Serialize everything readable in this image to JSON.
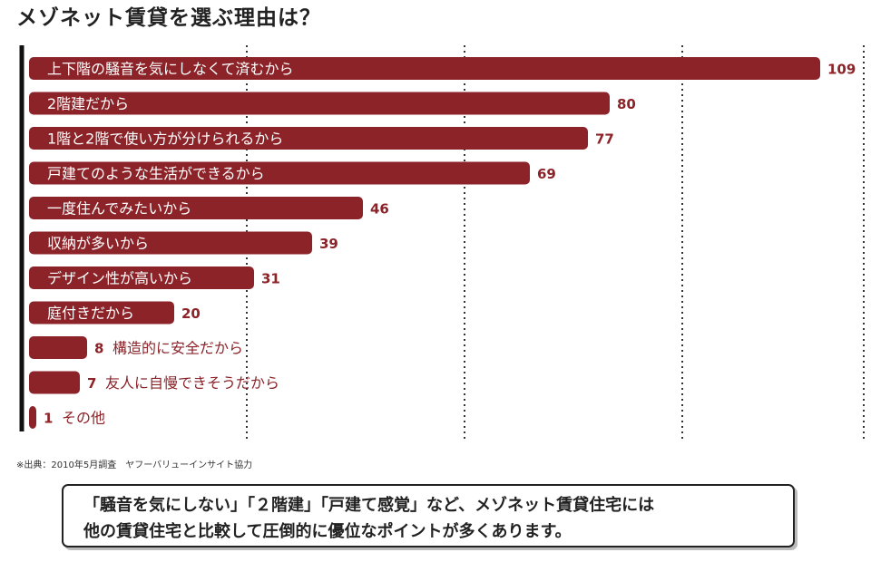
{
  "chart_data": {
    "type": "bar",
    "orientation": "horizontal",
    "title": "メゾネット賃貸を選ぶ理由は？",
    "categories": [
      "上下階の騒音を気にしなくて済むから",
      "2階建だから",
      "1階と2階で使い方が分けられるから",
      "戸建てのような生活ができるから",
      "一度住んでみたいから",
      "収納が多いから",
      "デザイン性が高いから",
      "庭付きだから",
      "構造的に安全だから",
      "友人に自慢できそうだから",
      "その他"
    ],
    "values": [
      109,
      80,
      77,
      69,
      46,
      39,
      31,
      20,
      8,
      7,
      1
    ],
    "xlim": [
      0,
      115
    ],
    "grid": true,
    "grid_ticks": [
      30,
      60,
      90
    ],
    "bar_color": "#8b2328",
    "label_inside_color": "#ffffff",
    "label_outside_color": "#8b2328"
  },
  "source": "※出典：2010年5月調査　ヤフーバリューインサイト協力",
  "note": {
    "line1": "「騒音を気にしない」「２階建」「戸建て感覚」など、メゾネット賃貸住宅には",
    "line2": "他の賃貸住宅と比較して圧倒的に優位なポイントが多くあります。"
  }
}
